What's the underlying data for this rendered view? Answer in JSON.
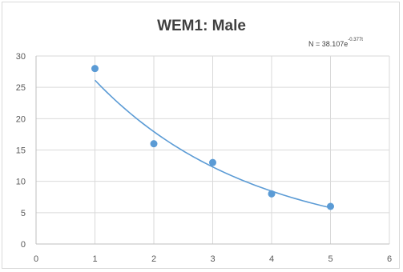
{
  "chart_data": {
    "type": "scatter",
    "title": "WEM1: Male",
    "trendline": {
      "kind": "exponential",
      "equation_prefix": "N = 38.107e",
      "equation_exponent": "-0.377t",
      "a": 38.107,
      "b": -0.377,
      "color": "#5b9bd5"
    },
    "series": [
      {
        "x": [
          1,
          2,
          3,
          4,
          5
        ],
        "y": [
          28,
          16,
          13,
          8,
          6
        ],
        "color": "#5b9bd5"
      }
    ],
    "xlim": [
      0,
      6
    ],
    "ylim": [
      0,
      30
    ],
    "x_ticks": [
      "0",
      "1",
      "2",
      "3",
      "4",
      "5",
      "6"
    ],
    "y_ticks": [
      "0",
      "5",
      "10",
      "15",
      "20",
      "25",
      "30"
    ],
    "grid": true,
    "gridline_color": "#d9d9d9",
    "legend": "none"
  }
}
